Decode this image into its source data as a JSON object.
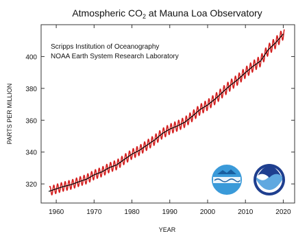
{
  "chart_data": {
    "type": "line",
    "title_main": "Atmospheric CO",
    "title_sub": "2",
    "title_rest": " at Mauna Loa Observatory",
    "credits": [
      "Scripps Institution of Oceanography",
      "NOAA Earth System Research Laboratory"
    ],
    "xlabel": "YEAR",
    "ylabel": "PARTS PER MILLION",
    "xlim": [
      1956,
      2023
    ],
    "ylim": [
      308,
      420
    ],
    "xticks": [
      1960,
      1970,
      1980,
      1990,
      2000,
      2010,
      2020
    ],
    "yticks": [
      320,
      340,
      360,
      380,
      400
    ],
    "grid": false,
    "series": [
      {
        "role": "trend",
        "color": "#000000",
        "x": [
          1958,
          1960,
          1962,
          1964,
          1966,
          1968,
          1970,
          1972,
          1974,
          1976,
          1978,
          1980,
          1982,
          1984,
          1986,
          1988,
          1990,
          1992,
          1994,
          1996,
          1998,
          2000,
          2002,
          2004,
          2006,
          2008,
          2010,
          2012,
          2014,
          2016,
          2018,
          2020
        ],
        "y": [
          315.3,
          316.9,
          318.4,
          319.6,
          321.4,
          323.0,
          325.7,
          327.5,
          330.2,
          332.0,
          335.4,
          338.7,
          341.1,
          344.4,
          347.6,
          351.6,
          354.4,
          356.4,
          358.8,
          362.6,
          366.7,
          369.6,
          373.3,
          377.7,
          381.9,
          385.6,
          389.9,
          393.9,
          397.2,
          404.2,
          408.7,
          414.2
        ]
      },
      {
        "role": "monthly",
        "color": "#d42020",
        "seasonal_amplitude": 3.2
      }
    ],
    "logos": [
      {
        "icon": "scripps-logo-icon",
        "colors": [
          "#3a9ad9",
          "#1a5fa0"
        ]
      },
      {
        "icon": "noaa-logo-icon",
        "colors": [
          "#1f3f8f",
          "#5fa8e0"
        ]
      }
    ]
  }
}
